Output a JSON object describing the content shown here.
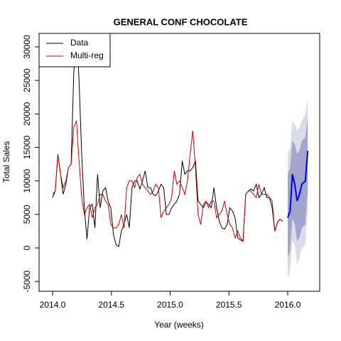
{
  "chart_data": {
    "type": "line",
    "title": "GENERAL CONF CHOCOLATE",
    "x_label": "Year (weeks)",
    "y_label": "Total Sales",
    "xlim": [
      2013.885,
      2016.272
    ],
    "ylim": [
      -6467,
      32014
    ],
    "xticks": [
      {
        "value": 2014,
        "label": "2014.0"
      },
      {
        "value": 2014.5,
        "label": "2014.5"
      },
      {
        "value": 2015,
        "label": "2015.0"
      },
      {
        "value": 2015.5,
        "label": "2015.5"
      },
      {
        "value": 2016,
        "label": "2016.0"
      }
    ],
    "yticks": [
      -5000,
      0,
      5000,
      10000,
      15000,
      20000,
      25000,
      30000
    ],
    "legend": "topleft",
    "x": [
      2014,
      2014.0225,
      2014.045,
      2014.0675,
      2014.09,
      2014.1125,
      2014.135,
      2014.1575,
      2014.18,
      2014.2025,
      2014.225,
      2014.2475,
      2014.27,
      2014.2925,
      2014.315,
      2014.3375,
      2014.36,
      2014.3825,
      2014.405,
      2014.4275,
      2014.45,
      2014.4725,
      2014.495,
      2014.5175,
      2014.54,
      2014.5625,
      2014.585,
      2014.6075,
      2014.63,
      2014.6525,
      2014.675,
      2014.6975,
      2014.72,
      2014.7425,
      2014.765,
      2014.7875,
      2014.81,
      2014.8325,
      2014.855,
      2014.8775,
      2014.9,
      2014.9225,
      2014.945,
      2014.9675,
      2014.99,
      2015.0125,
      2015.035,
      2015.0575,
      2015.08,
      2015.1025,
      2015.125,
      2015.1475,
      2015.17,
      2015.1925,
      2015.215,
      2015.2375,
      2015.26,
      2015.2825,
      2015.305,
      2015.3275,
      2015.35,
      2015.3725,
      2015.395,
      2015.4175,
      2015.44,
      2015.4625,
      2015.485,
      2015.5075,
      2015.53,
      2015.5525,
      2015.575,
      2015.5975,
      2015.62,
      2015.6425,
      2015.665,
      2015.6875,
      2015.71,
      2015.7325,
      2015.755,
      2015.7775,
      2015.8,
      2015.8225,
      2015.845,
      2015.8675,
      2015.89,
      2015.9125,
      2015.935,
      2015.9575
    ],
    "series": [
      {
        "name": "Data",
        "color": "#000000",
        "values": [
          7500,
          8500,
          14000,
          11000,
          8000,
          9500,
          12000,
          12500,
          26000,
          33000,
          25000,
          14000,
          6000,
          1300,
          6000,
          6500,
          3000,
          11000,
          6000,
          8500,
          9000,
          7000,
          6000,
          2000,
          500,
          200,
          2500,
          3500,
          5000,
          3000,
          9000,
          10000,
          10000,
          8800,
          10000,
          11500,
          9000,
          9000,
          8000,
          7800,
          8500,
          9500,
          9000,
          5000,
          5000,
          6000,
          6500,
          7000,
          8000,
          13000,
          11000,
          11500,
          11500,
          12000,
          13000,
          7000,
          6500,
          6000,
          6800,
          6500,
          6000,
          9000,
          6000,
          4000,
          3000,
          2800,
          3500,
          6000,
          5500,
          4500,
          1500,
          1200,
          1000,
          8000,
          8500,
          8800,
          8500,
          9500,
          7500,
          8000,
          9000,
          7500,
          7500,
          6000,
          2500,
          3800,
          4300,
          4000
        ]
      },
      {
        "name": "Multi-reg",
        "color": "#cc0000",
        "values": [
          8000,
          8500,
          14000,
          11000,
          9000,
          10000,
          12000,
          12500,
          18000,
          19000,
          13000,
          7500,
          5000,
          6000,
          6500,
          4500,
          6000,
          6500,
          8000,
          8000,
          7000,
          6500,
          3500,
          3000,
          3000,
          3500,
          5000,
          3000,
          9000,
          10000,
          10000,
          9000,
          10500,
          11000,
          9500,
          9000,
          8500,
          8000,
          8500,
          9500,
          9000,
          4500,
          5500,
          6000,
          6500,
          7500,
          11500,
          9500,
          10000,
          9000,
          8000,
          10000,
          14000,
          17500,
          12000,
          5000,
          3500,
          6500,
          7000,
          6000,
          7000,
          7000,
          4500,
          5000,
          5500,
          7000,
          5000,
          3500,
          3000,
          1500,
          2500,
          1500,
          1000,
          8000,
          8500,
          8500,
          8000,
          7500,
          9500,
          8000,
          8000,
          8000,
          7500,
          7000,
          2500,
          3800,
          4300,
          4000
        ]
      }
    ],
    "forecast": {
      "color": "#0000ee",
      "band80_color": "#a3a6cc",
      "band95_color": "#dcdce6",
      "x": [
        2016.0,
        2016.02,
        2016.04,
        2016.06,
        2016.08,
        2016.1,
        2016.12,
        2016.15,
        2016.17
      ],
      "values": [
        4500,
        5500,
        11000,
        9500,
        7000,
        8000,
        9500,
        10000,
        14500
      ],
      "upper95": [
        14000,
        15000,
        19000,
        18500,
        17500,
        18000,
        19000,
        20000,
        22500
      ],
      "lower95": [
        -4500,
        -3500,
        1000,
        500,
        -2500,
        -1500,
        0,
        500,
        5000
      ],
      "upper80": [
        11000,
        12000,
        16000,
        15500,
        14000,
        14500,
        16000,
        16500,
        19500
      ],
      "lower80": [
        -1500,
        -500,
        4500,
        3500,
        1000,
        1500,
        3000,
        3500,
        8500
      ]
    }
  }
}
